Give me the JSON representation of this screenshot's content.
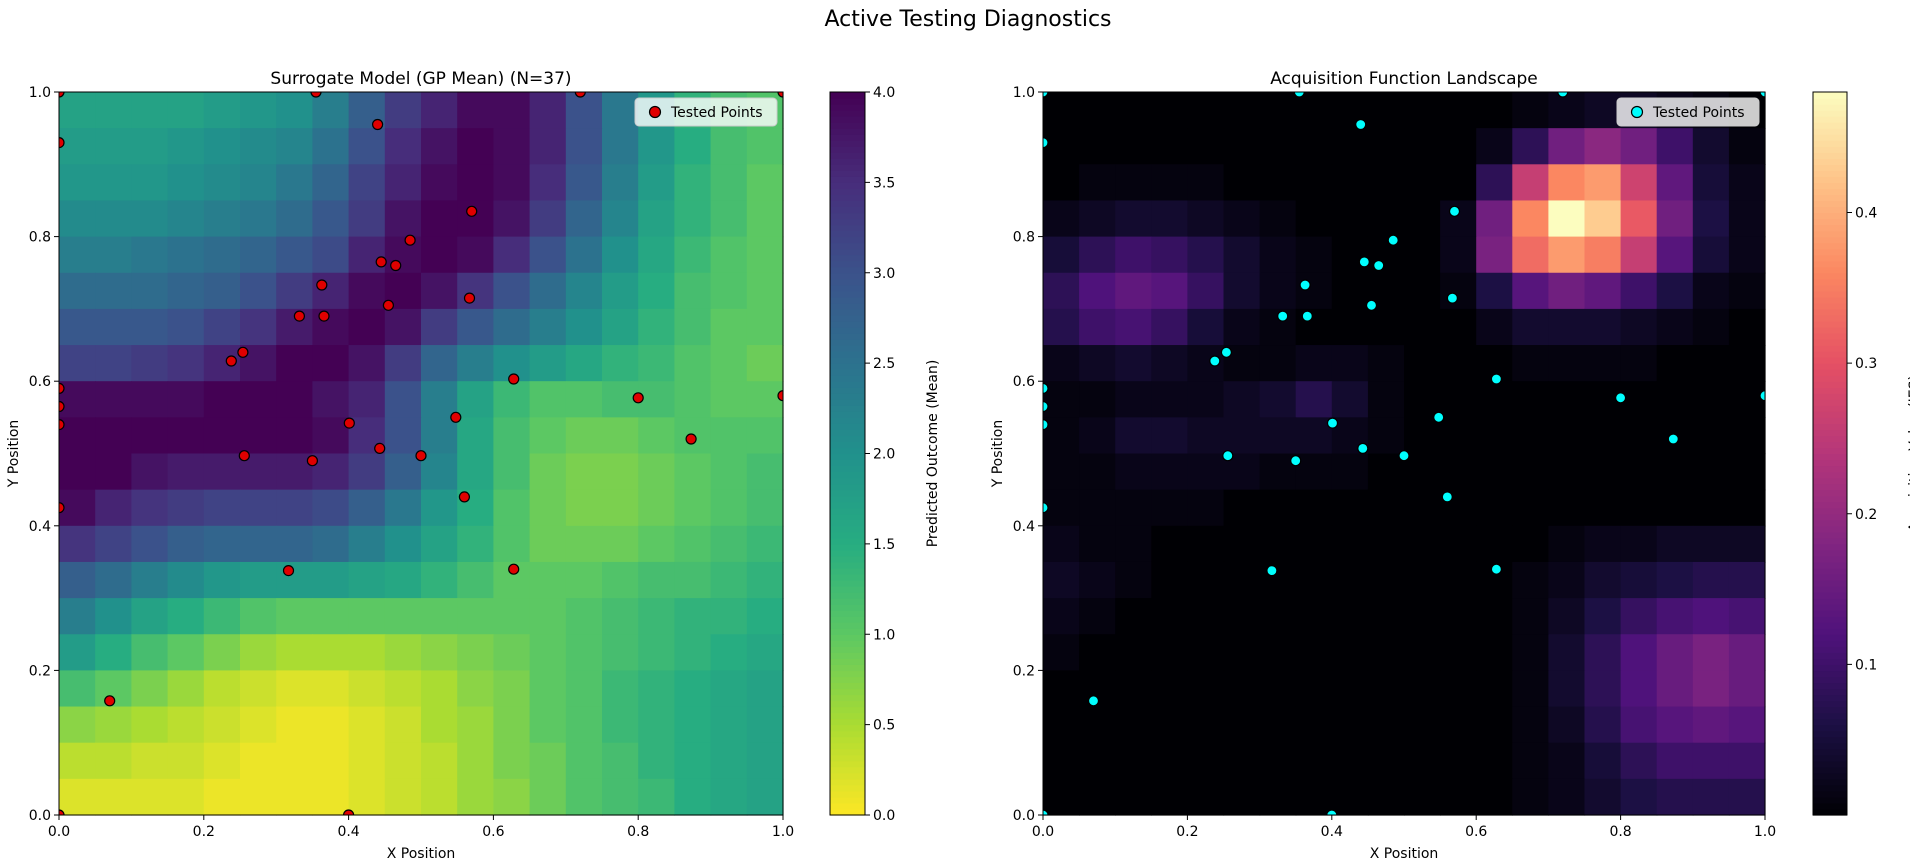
{
  "suptitle": "Active Testing Diagnostics",
  "chart_data": [
    {
      "type": "heatmap",
      "title": "Surrogate Model (GP Mean) (N=37)",
      "xlabel": "X Position",
      "ylabel": "Y Position",
      "xlim": [
        0,
        1
      ],
      "ylim": [
        0,
        1
      ],
      "xticks": [
        "0.0",
        "0.2",
        "0.4",
        "0.6",
        "0.8",
        "1.0"
      ],
      "yticks": [
        "0.0",
        "0.2",
        "0.4",
        "0.6",
        "0.8",
        "1.0"
      ],
      "grid": false,
      "colormap": "viridis_r",
      "grid_size": 20,
      "colorbar": {
        "label": "Predicted Outcome (Mean)",
        "min": 0,
        "max": 4,
        "ticks": [
          "0.0",
          "0.5",
          "1.0",
          "1.5",
          "2.0",
          "2.5",
          "3.0",
          "3.5",
          "4.0"
        ],
        "tick_values": [
          0,
          0.5,
          1,
          1.5,
          2,
          2.5,
          3,
          3.5,
          4
        ]
      },
      "legend": {
        "label": "Tested Points",
        "position": "top-right"
      },
      "marker_color": "#e00000",
      "marker_edge": "#000000"
    },
    {
      "type": "heatmap",
      "title": "Acquisition Function Landscape",
      "xlabel": "X Position",
      "ylabel": "Y Position",
      "xlim": [
        0,
        1
      ],
      "ylim": [
        0,
        1
      ],
      "xticks": [
        "0.0",
        "0.2",
        "0.4",
        "0.6",
        "0.8",
        "1.0"
      ],
      "yticks": [
        "0.0",
        "0.2",
        "0.4",
        "0.6",
        "0.8",
        "1.0"
      ],
      "grid": false,
      "colormap": "magma",
      "grid_size": 20,
      "colorbar": {
        "label": "Acquisition Value (JES)",
        "min": 0,
        "max": 0.48,
        "ticks": [
          "0.1",
          "0.2",
          "0.3",
          "0.4"
        ],
        "tick_values": [
          0.1,
          0.2,
          0.3,
          0.4
        ]
      },
      "legend": {
        "label": "Tested Points",
        "position": "top-right"
      },
      "marker_color": "#00ffff",
      "marker_edge": "#000000"
    }
  ],
  "tested_points": [
    [
      0.0,
      1.0
    ],
    [
      0.355,
      1.0
    ],
    [
      0.72,
      1.0
    ],
    [
      1.0,
      1.0
    ],
    [
      0.0,
      0.93
    ],
    [
      0.44,
      0.955
    ],
    [
      0.57,
      0.835
    ],
    [
      0.485,
      0.795
    ],
    [
      0.445,
      0.765
    ],
    [
      0.465,
      0.76
    ],
    [
      0.363,
      0.733
    ],
    [
      0.567,
      0.715
    ],
    [
      0.455,
      0.705
    ],
    [
      0.332,
      0.69
    ],
    [
      0.366,
      0.69
    ],
    [
      0.254,
      0.64
    ],
    [
      0.238,
      0.628
    ],
    [
      0.0,
      0.59
    ],
    [
      0.0,
      0.565
    ],
    [
      0.628,
      0.603
    ],
    [
      1.0,
      0.58
    ],
    [
      0.8,
      0.577
    ],
    [
      0.0,
      0.54
    ],
    [
      0.548,
      0.55
    ],
    [
      0.401,
      0.542
    ],
    [
      0.873,
      0.52
    ],
    [
      0.443,
      0.507
    ],
    [
      0.5,
      0.497
    ],
    [
      0.256,
      0.497
    ],
    [
      0.35,
      0.49
    ],
    [
      0.56,
      0.44
    ],
    [
      0.0,
      0.425
    ],
    [
      0.317,
      0.338
    ],
    [
      0.628,
      0.34
    ],
    [
      0.07,
      0.158
    ],
    [
      0.0,
      0.0
    ],
    [
      0.4,
      0.0
    ]
  ],
  "gp_mean_rows_top_to_bottom": [
    [
      1.7,
      1.7,
      1.7,
      1.7,
      1.8,
      1.9,
      2.0,
      2.3,
      2.8,
      3.3,
      3.6,
      3.9,
      3.9,
      3.6,
      3.0,
      2.4,
      1.9,
      1.4,
      1.2,
      1.1
    ],
    [
      1.8,
      1.8,
      1.8,
      1.9,
      2.0,
      2.1,
      2.2,
      2.5,
      3.0,
      3.5,
      3.8,
      4.0,
      3.9,
      3.6,
      3.0,
      2.4,
      1.9,
      1.5,
      1.2,
      1.1
    ],
    [
      1.9,
      1.9,
      1.9,
      2.0,
      2.1,
      2.2,
      2.4,
      2.7,
      3.2,
      3.6,
      3.9,
      4.0,
      3.9,
      3.5,
      2.9,
      2.3,
      1.8,
      1.4,
      1.2,
      1.0
    ],
    [
      2.1,
      2.1,
      2.1,
      2.2,
      2.3,
      2.4,
      2.6,
      2.9,
      3.3,
      3.8,
      4.0,
      4.0,
      3.8,
      3.3,
      2.7,
      2.2,
      1.7,
      1.4,
      1.2,
      1.0
    ],
    [
      2.3,
      2.3,
      2.4,
      2.5,
      2.6,
      2.7,
      2.9,
      3.1,
      3.6,
      3.9,
      4.0,
      3.9,
      3.5,
      3.0,
      2.5,
      2.0,
      1.6,
      1.3,
      1.1,
      1.0
    ],
    [
      2.6,
      2.6,
      2.6,
      2.7,
      2.8,
      3.0,
      3.3,
      3.6,
      3.9,
      4.0,
      3.8,
      3.4,
      3.0,
      2.6,
      2.2,
      1.8,
      1.5,
      1.2,
      1.1,
      1.0
    ],
    [
      2.9,
      2.9,
      2.9,
      3.0,
      3.2,
      3.4,
      3.7,
      3.9,
      4.0,
      3.8,
      3.3,
      2.9,
      2.6,
      2.3,
      2.0,
      1.7,
      1.4,
      1.2,
      1.0,
      1.0
    ],
    [
      3.2,
      3.2,
      3.3,
      3.4,
      3.6,
      3.8,
      4.0,
      4.0,
      3.8,
      3.3,
      2.7,
      2.3,
      2.0,
      1.8,
      1.6,
      1.4,
      1.3,
      1.1,
      1.0,
      0.9
    ],
    [
      3.9,
      3.9,
      3.9,
      3.9,
      4.0,
      4.0,
      4.0,
      3.8,
      3.6,
      3.0,
      2.3,
      1.7,
      1.3,
      1.1,
      1.1,
      1.2,
      1.2,
      1.1,
      1.0,
      1.0
    ],
    [
      4.0,
      4.0,
      4.0,
      4.0,
      4.0,
      4.0,
      4.0,
      3.9,
      3.5,
      3.0,
      2.3,
      1.6,
      1.2,
      1.0,
      0.9,
      0.9,
      1.0,
      1.1,
      1.1,
      1.1
    ],
    [
      4.0,
      4.0,
      3.8,
      3.7,
      3.7,
      3.7,
      3.7,
      3.6,
      3.3,
      2.8,
      2.2,
      1.6,
      1.2,
      0.9,
      0.8,
      0.8,
      0.9,
      1.0,
      1.1,
      1.2
    ],
    [
      3.9,
      3.6,
      3.4,
      3.3,
      3.2,
      3.2,
      3.2,
      3.1,
      2.8,
      2.4,
      1.9,
      1.5,
      1.1,
      0.9,
      0.8,
      0.8,
      0.9,
      1.0,
      1.1,
      1.2
    ],
    [
      3.4,
      3.2,
      3.0,
      2.8,
      2.7,
      2.7,
      2.7,
      2.6,
      2.3,
      2.0,
      1.7,
      1.4,
      1.1,
      0.9,
      0.9,
      0.9,
      1.0,
      1.1,
      1.2,
      1.3
    ],
    [
      2.8,
      2.6,
      2.3,
      2.1,
      1.9,
      1.8,
      1.8,
      1.8,
      1.7,
      1.6,
      1.4,
      1.2,
      1.0,
      1.0,
      1.0,
      1.1,
      1.2,
      1.2,
      1.3,
      1.4
    ],
    [
      2.3,
      2.0,
      1.7,
      1.5,
      1.3,
      1.1,
      1.0,
      1.0,
      1.0,
      1.0,
      1.0,
      1.0,
      1.0,
      1.0,
      1.1,
      1.2,
      1.3,
      1.4,
      1.4,
      1.5
    ],
    [
      1.8,
      1.5,
      1.2,
      1.0,
      0.8,
      0.6,
      0.5,
      0.5,
      0.5,
      0.6,
      0.7,
      0.8,
      0.9,
      1.0,
      1.1,
      1.2,
      1.3,
      1.4,
      1.5,
      1.6
    ],
    [
      1.2,
      1.0,
      0.8,
      0.6,
      0.4,
      0.3,
      0.2,
      0.2,
      0.3,
      0.4,
      0.5,
      0.7,
      0.8,
      1.0,
      1.1,
      1.3,
      1.4,
      1.5,
      1.6,
      1.7
    ],
    [
      0.7,
      0.6,
      0.5,
      0.4,
      0.3,
      0.2,
      0.1,
      0.1,
      0.2,
      0.3,
      0.5,
      0.6,
      0.8,
      1.0,
      1.1,
      1.3,
      1.4,
      1.5,
      1.6,
      1.7
    ],
    [
      0.4,
      0.4,
      0.3,
      0.3,
      0.2,
      0.1,
      0.1,
      0.1,
      0.2,
      0.3,
      0.4,
      0.6,
      0.8,
      0.9,
      1.1,
      1.2,
      1.4,
      1.5,
      1.6,
      1.7
    ],
    [
      0.2,
      0.2,
      0.2,
      0.2,
      0.1,
      0.1,
      0.1,
      0.1,
      0.2,
      0.3,
      0.4,
      0.6,
      0.7,
      0.9,
      1.1,
      1.2,
      1.3,
      1.5,
      1.6,
      1.7
    ]
  ],
  "acq_rows_top_to_bottom": [
    [
      0,
      0,
      0,
      0,
      0,
      0,
      0,
      0,
      0,
      0,
      0,
      0,
      0,
      0.01,
      0.02,
      0.03,
      0.03,
      0.02,
      0.01,
      0
    ],
    [
      0,
      0,
      0,
      0,
      0,
      0,
      0,
      0,
      0,
      0,
      0,
      0,
      0.02,
      0.08,
      0.16,
      0.19,
      0.16,
      0.1,
      0.04,
      0.01
    ],
    [
      0,
      0.01,
      0.01,
      0.01,
      0.01,
      0,
      0,
      0,
      0,
      0,
      0,
      0,
      0.08,
      0.26,
      0.36,
      0.38,
      0.27,
      0.14,
      0.05,
      0.02
    ],
    [
      0.02,
      0.03,
      0.04,
      0.04,
      0.03,
      0.02,
      0.01,
      0,
      0,
      0,
      0,
      0.02,
      0.16,
      0.36,
      0.48,
      0.43,
      0.31,
      0.16,
      0.06,
      0.02
    ],
    [
      0.05,
      0.08,
      0.1,
      0.09,
      0.07,
      0.04,
      0.02,
      0.01,
      0,
      0,
      0,
      0.02,
      0.17,
      0.33,
      0.38,
      0.35,
      0.26,
      0.13,
      0.05,
      0.02
    ],
    [
      0.08,
      0.12,
      0.14,
      0.13,
      0.09,
      0.04,
      0.02,
      0.01,
      0,
      0,
      0,
      0.01,
      0.06,
      0.13,
      0.16,
      0.14,
      0.1,
      0.06,
      0.02,
      0.01
    ],
    [
      0.07,
      0.1,
      0.11,
      0.09,
      0.05,
      0.02,
      0.01,
      0,
      0,
      0,
      0,
      0,
      0.02,
      0.04,
      0.04,
      0.04,
      0.03,
      0.02,
      0.01,
      0
    ],
    [
      0.02,
      0.03,
      0.04,
      0.03,
      0.02,
      0.01,
      0.01,
      0.02,
      0.02,
      0.01,
      0,
      0,
      0,
      0.01,
      0.01,
      0.01,
      0.01,
      0,
      0,
      0
    ],
    [
      0.01,
      0.01,
      0.02,
      0.02,
      0.02,
      0.03,
      0.04,
      0.07,
      0.04,
      0.01,
      0,
      0,
      0,
      0,
      0,
      0,
      0,
      0,
      0,
      0
    ],
    [
      0.01,
      0.02,
      0.04,
      0.04,
      0.03,
      0.03,
      0.03,
      0.03,
      0.02,
      0.01,
      0,
      0,
      0,
      0,
      0,
      0,
      0,
      0,
      0,
      0
    ],
    [
      0.01,
      0.01,
      0.02,
      0.02,
      0.02,
      0.02,
      0.01,
      0.01,
      0.01,
      0,
      0,
      0,
      0,
      0,
      0,
      0,
      0,
      0,
      0,
      0
    ],
    [
      0.01,
      0.01,
      0.01,
      0.01,
      0.01,
      0,
      0,
      0,
      0,
      0,
      0,
      0,
      0,
      0,
      0,
      0,
      0,
      0,
      0,
      0
    ],
    [
      0.02,
      0.01,
      0.01,
      0,
      0,
      0,
      0,
      0,
      0,
      0,
      0,
      0,
      0,
      0,
      0.01,
      0.02,
      0.02,
      0.03,
      0.03,
      0.03
    ],
    [
      0.03,
      0.02,
      0.01,
      0,
      0,
      0,
      0,
      0,
      0,
      0,
      0,
      0,
      0,
      0.01,
      0.02,
      0.04,
      0.05,
      0.06,
      0.07,
      0.07
    ],
    [
      0.02,
      0.01,
      0,
      0,
      0,
      0,
      0,
      0,
      0,
      0,
      0,
      0,
      0,
      0.01,
      0.03,
      0.06,
      0.09,
      0.11,
      0.12,
      0.11
    ],
    [
      0.01,
      0,
      0,
      0,
      0,
      0,
      0,
      0,
      0,
      0,
      0,
      0,
      0,
      0.01,
      0.04,
      0.08,
      0.12,
      0.15,
      0.17,
      0.15
    ],
    [
      0,
      0,
      0,
      0,
      0,
      0,
      0,
      0,
      0,
      0,
      0,
      0,
      0,
      0.01,
      0.04,
      0.08,
      0.12,
      0.15,
      0.17,
      0.15
    ],
    [
      0,
      0,
      0,
      0,
      0,
      0,
      0,
      0,
      0,
      0,
      0,
      0,
      0,
      0.01,
      0.03,
      0.07,
      0.11,
      0.13,
      0.14,
      0.13
    ],
    [
      0,
      0,
      0,
      0,
      0,
      0,
      0,
      0,
      0,
      0,
      0,
      0,
      0,
      0.01,
      0.02,
      0.05,
      0.08,
      0.1,
      0.1,
      0.1
    ],
    [
      0,
      0,
      0,
      0,
      0,
      0,
      0,
      0,
      0,
      0,
      0,
      0,
      0,
      0.01,
      0.02,
      0.04,
      0.06,
      0.07,
      0.07,
      0.07
    ]
  ]
}
